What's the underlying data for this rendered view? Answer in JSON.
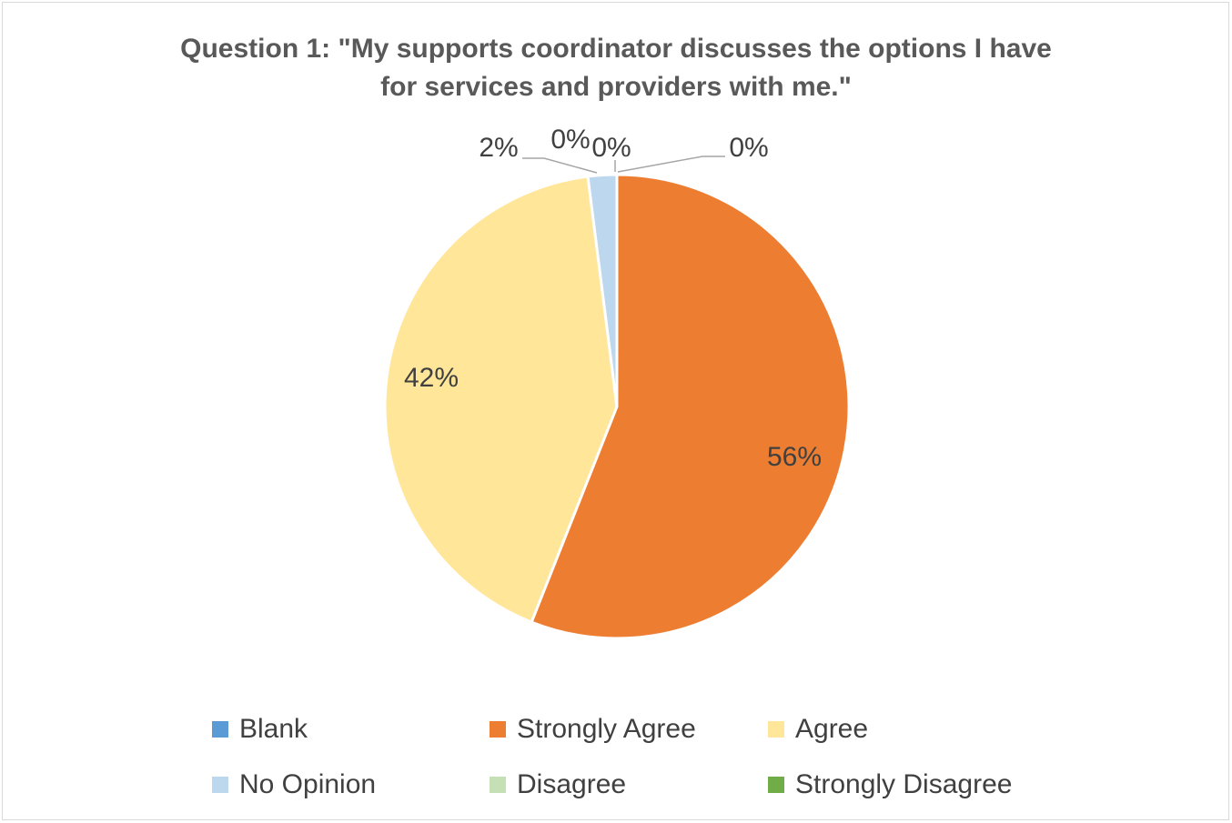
{
  "chart_data": {
    "type": "pie",
    "title_line1": "Question 1: \"My supports coordinator discusses the options I have",
    "title_line2": "for services and providers with me.\"",
    "categories": [
      "Blank",
      "Strongly Agree",
      "Agree",
      "No Opinion",
      "Disagree",
      "Strongly Disagree"
    ],
    "values": [
      0,
      56,
      42,
      2,
      0,
      0
    ],
    "labels": [
      "0%",
      "56%",
      "42%",
      "2%",
      "0%",
      "0%"
    ],
    "colors": [
      "#5b9bd5",
      "#ed7d31",
      "#ffe699",
      "#bdd7ee",
      "#c5e0b4",
      "#70ad47"
    ],
    "legend_position": "bottom"
  }
}
